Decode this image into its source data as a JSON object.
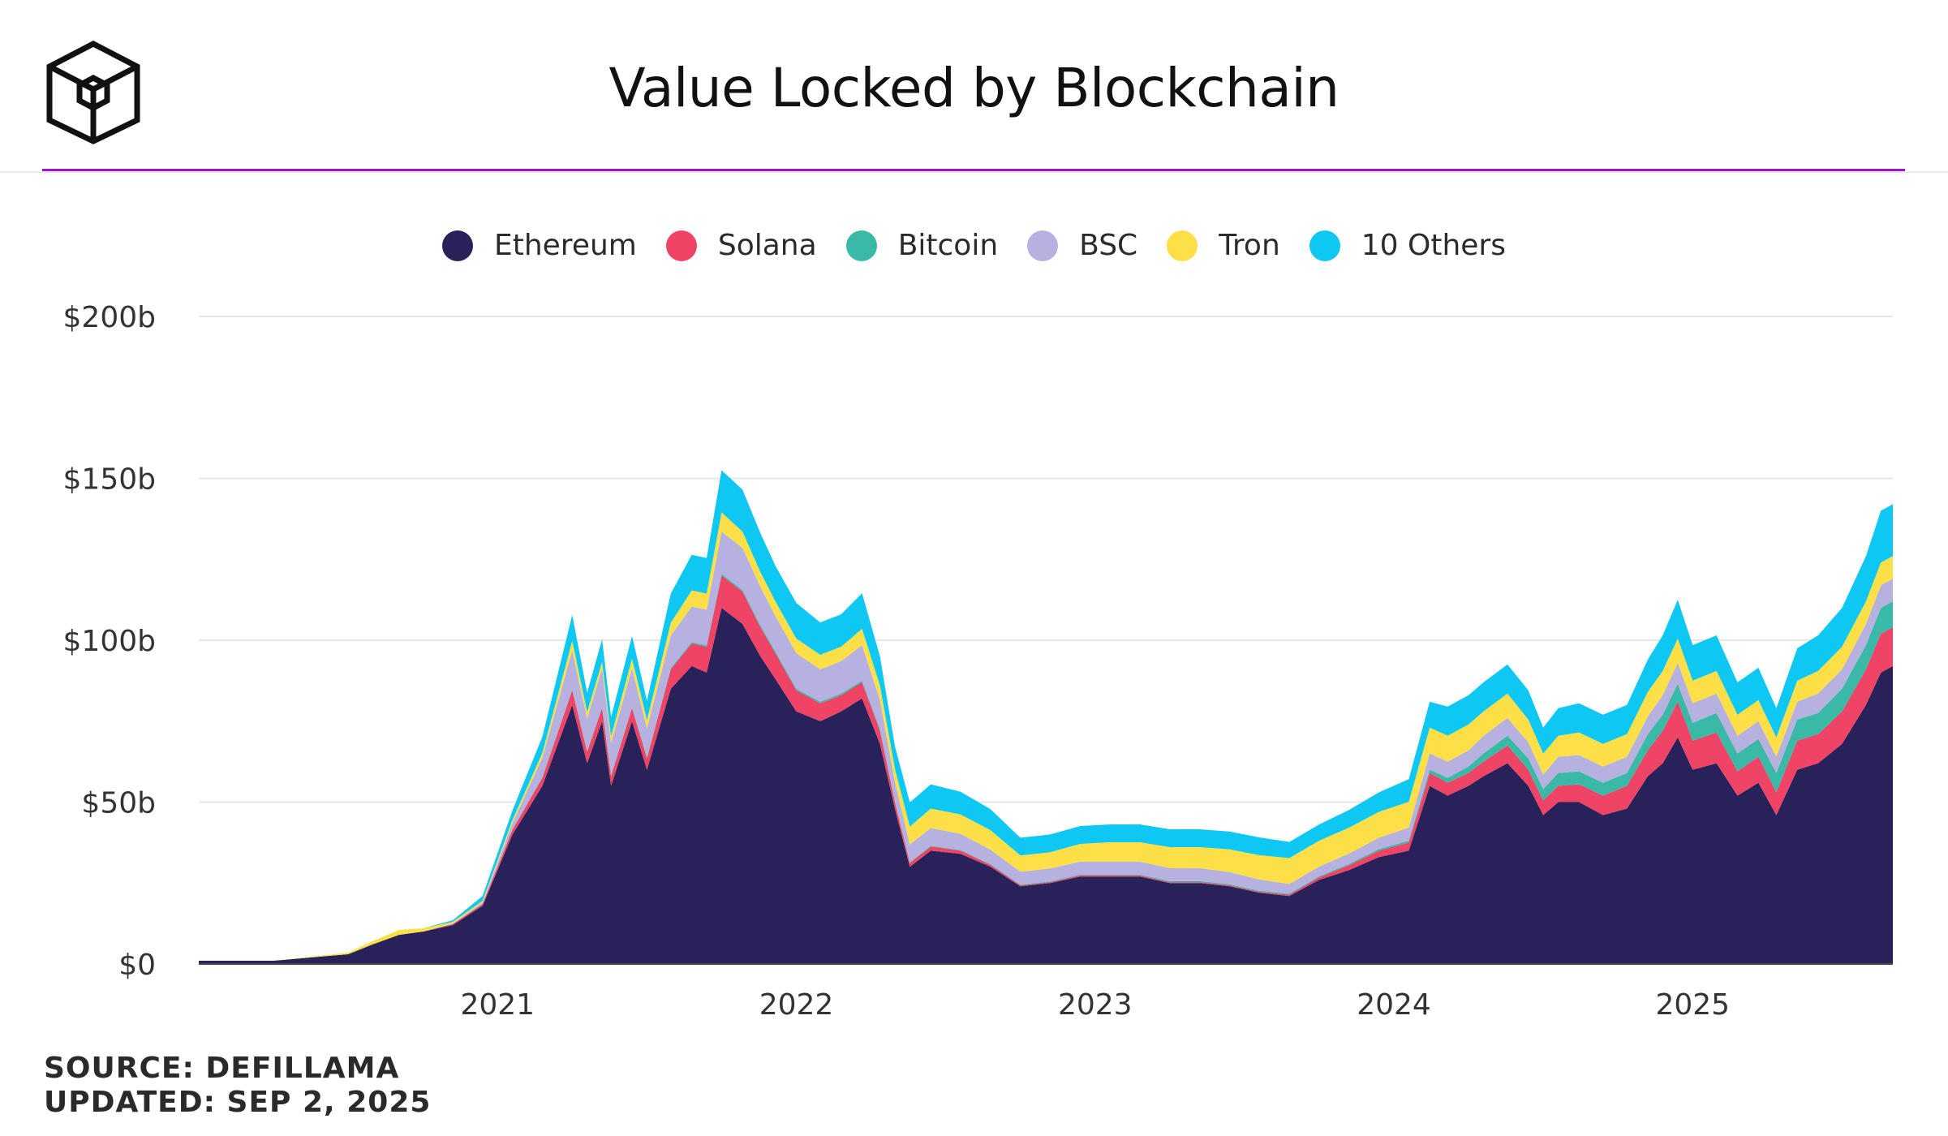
{
  "title": "Value Locked by Blockchain",
  "footer": {
    "source": "SOURCE: DEFILLAMA",
    "updated": "UPDATED: SEP 2, 2025"
  },
  "colors": {
    "accent_rule": "#a414c7",
    "Ethereum": "#29215a",
    "Solana": "#ef4466",
    "Bitcoin": "#3ab9a7",
    "BSC": "#b7b1e0",
    "Tron": "#fde047",
    "10 Others": "#0ec8f3"
  },
  "logo": {
    "icon": "cube-logo-icon"
  },
  "chart_data": {
    "type": "area",
    "stacked": true,
    "title": "Value Locked by Blockchain",
    "xlabel": "",
    "ylabel": "",
    "ylim": [
      0,
      200
    ],
    "xlim": [
      2020.0,
      2025.67
    ],
    "x_ticks": [
      2021,
      2022,
      2023,
      2024,
      2025
    ],
    "x_tick_labels": [
      "2021",
      "2022",
      "2023",
      "2024",
      "2025"
    ],
    "y_ticks": [
      0,
      50,
      100,
      150,
      200
    ],
    "y_tick_labels": [
      "$0",
      "$50b",
      "$100b",
      "$150b",
      "$200b"
    ],
    "grid": "horizontal",
    "legend_position": "top",
    "units": "billions USD",
    "x": [
      2020.0,
      2020.25,
      2020.5,
      2020.58,
      2020.67,
      2020.75,
      2020.85,
      2020.95,
      2021.05,
      2021.15,
      2021.25,
      2021.3,
      2021.35,
      2021.38,
      2021.45,
      2021.5,
      2021.58,
      2021.65,
      2021.7,
      2021.75,
      2021.82,
      2021.88,
      2021.93,
      2022.0,
      2022.08,
      2022.15,
      2022.22,
      2022.28,
      2022.33,
      2022.38,
      2022.45,
      2022.55,
      2022.65,
      2022.75,
      2022.85,
      2022.95,
      2023.05,
      2023.15,
      2023.25,
      2023.35,
      2023.45,
      2023.55,
      2023.65,
      2023.75,
      2023.85,
      2023.95,
      2024.05,
      2024.12,
      2024.18,
      2024.25,
      2024.3,
      2024.38,
      2024.45,
      2024.5,
      2024.55,
      2024.62,
      2024.7,
      2024.78,
      2024.85,
      2024.9,
      2024.95,
      2025.0,
      2025.08,
      2025.15,
      2025.22,
      2025.28,
      2025.35,
      2025.42,
      2025.5,
      2025.58,
      2025.63,
      2025.67
    ],
    "series": [
      {
        "name": "Ethereum",
        "values": [
          1,
          1,
          3,
          6,
          9,
          10,
          12,
          18,
          40,
          55,
          80,
          62,
          75,
          55,
          75,
          60,
          85,
          92,
          90,
          110,
          105,
          95,
          88,
          78,
          75,
          78,
          82,
          68,
          48,
          30,
          35,
          34,
          30,
          24,
          25,
          27,
          27,
          27,
          25,
          25,
          24,
          22,
          21,
          26,
          29,
          33,
          35,
          55,
          52,
          55,
          58,
          62,
          55,
          46,
          50,
          50,
          46,
          48,
          58,
          62,
          70,
          60,
          62,
          52,
          56,
          46,
          60,
          62,
          68,
          80,
          90,
          92
        ]
      },
      {
        "name": "Solana",
        "values": [
          0,
          0,
          0,
          0,
          0,
          0,
          0.3,
          0.5,
          1.5,
          2.5,
          4.5,
          3.5,
          4,
          3,
          4,
          3.5,
          6,
          7,
          8,
          10,
          10,
          9,
          8,
          6.5,
          5.5,
          5,
          5,
          4,
          2,
          1.2,
          1.3,
          1,
          0.6,
          0.3,
          0.3,
          0.4,
          0.4,
          0.4,
          0.3,
          0.3,
          0.3,
          0.3,
          0.4,
          0.8,
          1.5,
          2,
          2.5,
          4,
          4,
          4,
          4.5,
          5.5,
          5,
          4.5,
          5,
          5.5,
          6,
          7,
          8,
          10,
          11,
          9,
          9.5,
          7.5,
          8,
          7,
          9,
          9,
          10,
          11,
          12,
          12
        ]
      },
      {
        "name": "Bitcoin",
        "values": [
          0,
          0,
          0,
          0,
          0,
          0,
          0,
          0,
          0,
          0.2,
          0.3,
          0.3,
          0.3,
          0.3,
          0.3,
          0.3,
          0.4,
          0.4,
          0.4,
          0.5,
          0.5,
          0.5,
          0.5,
          0.5,
          0.5,
          0.5,
          0.5,
          0.5,
          0.3,
          0.2,
          0.2,
          0.2,
          0.2,
          0.2,
          0.2,
          0.2,
          0.2,
          0.2,
          0.3,
          0.3,
          0.3,
          0.3,
          0.3,
          0.3,
          0.4,
          0.5,
          0.6,
          1,
          1.5,
          2,
          2.5,
          3,
          3.5,
          3.5,
          4,
          4,
          4,
          4,
          5,
          5,
          5.5,
          5.5,
          6,
          5.5,
          5.5,
          6,
          6.5,
          6.5,
          7,
          7.5,
          8,
          8
        ]
      },
      {
        "name": "BSC",
        "values": [
          0,
          0,
          0,
          0,
          0,
          0,
          0.2,
          0.5,
          2,
          6,
          12,
          10,
          12,
          10,
          12,
          9,
          10,
          11,
          11,
          13,
          13,
          12,
          11,
          11,
          10,
          10,
          11,
          9,
          6,
          5.5,
          5.5,
          5,
          4.5,
          4,
          4,
          4,
          4,
          4,
          4,
          4,
          3.8,
          3.5,
          3,
          3,
          3.2,
          3.5,
          4,
          5,
          5,
          5,
          5.5,
          5.5,
          5,
          4.5,
          5,
          5,
          5,
          5,
          5.5,
          6,
          6.5,
          6,
          6,
          5.5,
          5.5,
          5,
          5.5,
          6,
          6,
          6.5,
          7,
          7
        ]
      },
      {
        "name": "Tron",
        "values": [
          0,
          0,
          0.5,
          1,
          1.5,
          1,
          0.5,
          0.5,
          1,
          1.5,
          3,
          2,
          2,
          2,
          3,
          2.5,
          4,
          5,
          5,
          6,
          5,
          4.5,
          4.5,
          4.5,
          4.5,
          4.5,
          5,
          4.5,
          4,
          5.5,
          6,
          6,
          6,
          5,
          5,
          5.5,
          6,
          6,
          6.5,
          6.5,
          7,
          7.5,
          8,
          8,
          8,
          8,
          8,
          8,
          8,
          8,
          7.5,
          7.5,
          7,
          6.5,
          6.5,
          7,
          7,
          7,
          7.5,
          7.5,
          7.5,
          7,
          7,
          6.5,
          6.5,
          6,
          6.5,
          7,
          7,
          7,
          7,
          7
        ]
      },
      {
        "name": "10 Others",
        "values": [
          0,
          0,
          0,
          0,
          0,
          0,
          0.5,
          1.5,
          3,
          5,
          8,
          6,
          7,
          6,
          7,
          6,
          9,
          11,
          11,
          13,
          13,
          12,
          11,
          11,
          10,
          10,
          11,
          9,
          7,
          7.5,
          7.5,
          7,
          6.5,
          5.5,
          5.5,
          5.5,
          5.5,
          5.5,
          5.5,
          5.5,
          5.5,
          5.5,
          5,
          5,
          5.5,
          6,
          7,
          8,
          9,
          9,
          9,
          9,
          9,
          8,
          8.5,
          9,
          9,
          9,
          10,
          11,
          12,
          11,
          11,
          10,
          10,
          9,
          10,
          11,
          12,
          14,
          16,
          16
        ]
      }
    ]
  }
}
